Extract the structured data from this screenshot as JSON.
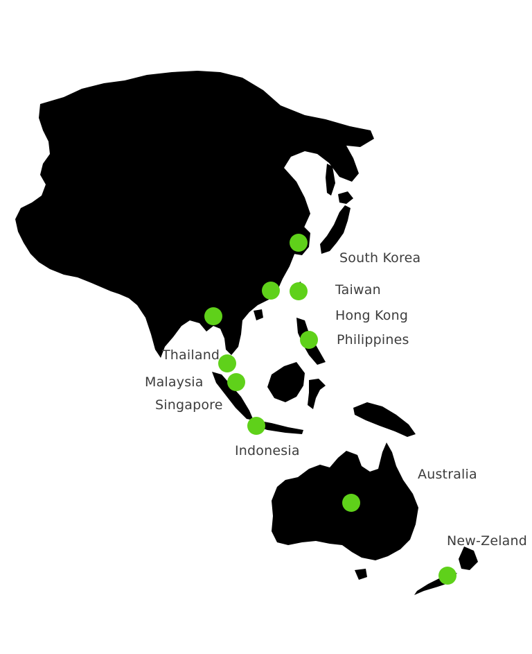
{
  "map": {
    "land_color": "#000000",
    "marker_color": "#5fd11a",
    "label_color": "#3c3c3c",
    "background": "#ffffff"
  },
  "locations": [
    {
      "key": "south-korea",
      "label": "South Korea"
    },
    {
      "key": "taiwan",
      "label": "Taiwan"
    },
    {
      "key": "hong-kong",
      "label": "Hong Kong"
    },
    {
      "key": "philippines",
      "label": "Philippines"
    },
    {
      "key": "thailand",
      "label": "Thailand"
    },
    {
      "key": "malaysia",
      "label": "Malaysia"
    },
    {
      "key": "singapore",
      "label": "Singapore"
    },
    {
      "key": "indonesia",
      "label": "Indonesia"
    },
    {
      "key": "australia",
      "label": "Australia"
    },
    {
      "key": "new-zeland",
      "label": "New-Zeland"
    }
  ]
}
